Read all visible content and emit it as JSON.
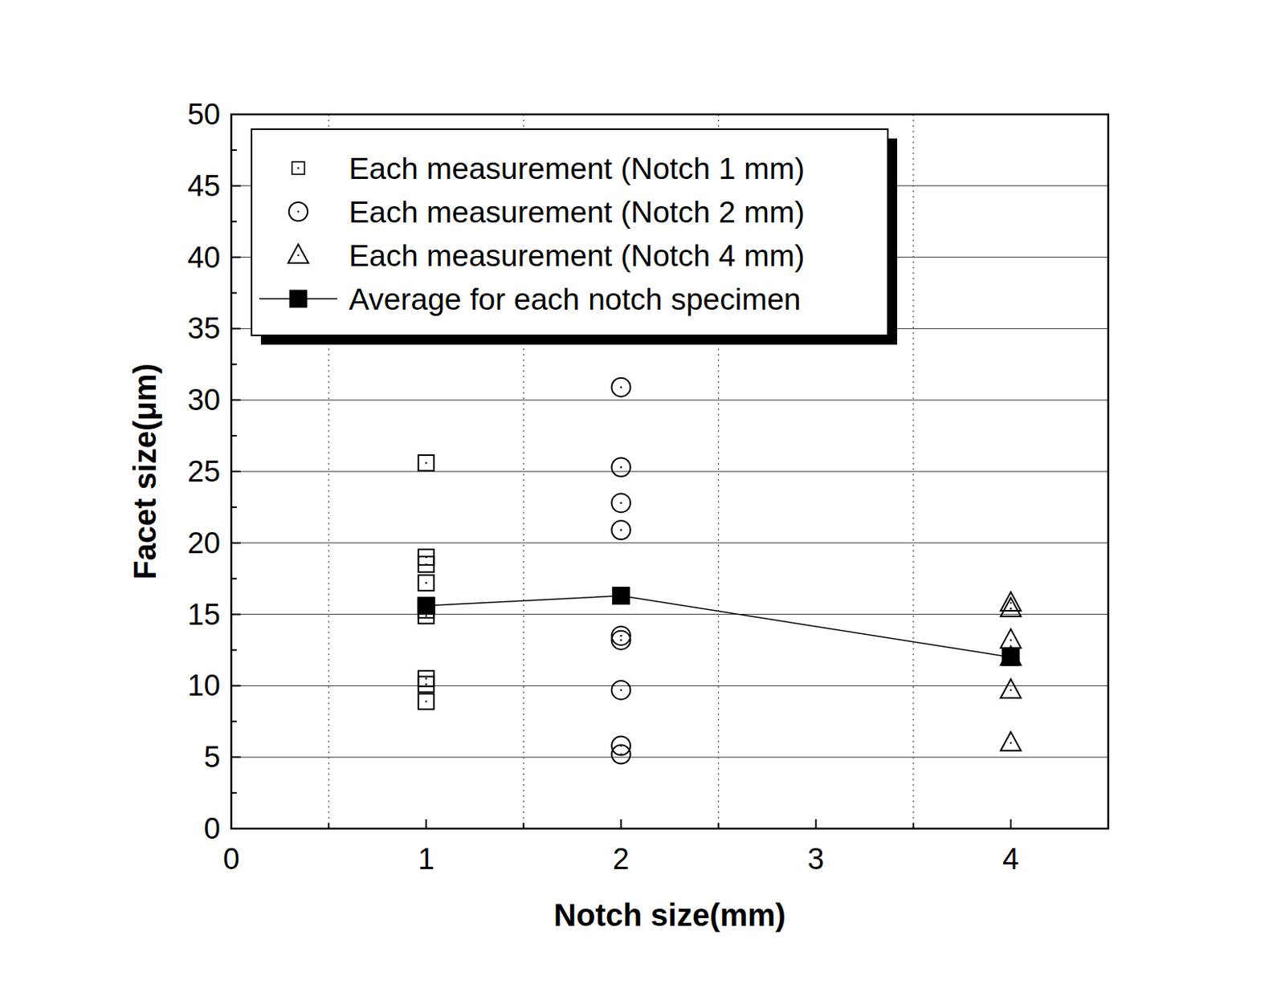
{
  "chart_data": {
    "type": "scatter",
    "x_label": "Notch size(mm)",
    "y_label": "Facet size(μm)",
    "xlim": [
      0,
      4.5
    ],
    "xticks": [
      0,
      1,
      2,
      3,
      4
    ],
    "ylim": [
      0,
      50
    ],
    "yticks": [
      0,
      5,
      10,
      15,
      20,
      25,
      30,
      35,
      40,
      45,
      50
    ],
    "grid": true,
    "legend": "upper left",
    "series": [
      {
        "name": "Each measurement (Notch 1 mm)",
        "color": "#000000",
        "marker": "square",
        "line_style": "none",
        "x": [
          1,
          1,
          1,
          1,
          1,
          1,
          1,
          1,
          1
        ],
        "values": [
          25.6,
          19.0,
          18.5,
          17.2,
          15.3,
          14.9,
          10.5,
          10.1,
          8.9
        ]
      },
      {
        "name": "Each measurement (Notch 2 mm)",
        "color": "#000000",
        "marker": "circle",
        "line_style": "none",
        "x": [
          2,
          2,
          2,
          2,
          2,
          2,
          2,
          2,
          2
        ],
        "values": [
          30.9,
          25.3,
          22.8,
          20.9,
          13.5,
          13.2,
          9.7,
          5.8,
          5.2
        ]
      },
      {
        "name": "Each measurement (Notch 4 mm)",
        "color": "#000000",
        "marker": "triangle",
        "line_style": "none",
        "x": [
          4,
          4,
          4,
          4,
          4,
          4
        ],
        "values": [
          15.8,
          15.4,
          13.2,
          12.0,
          9.7,
          6.0
        ]
      },
      {
        "name": "Average for each notch specimen",
        "color": "#000000",
        "marker": "filled-square",
        "line_style": "solid",
        "x": [
          1,
          2,
          4
        ],
        "values": [
          15.6,
          16.3,
          12.0
        ]
      }
    ]
  }
}
